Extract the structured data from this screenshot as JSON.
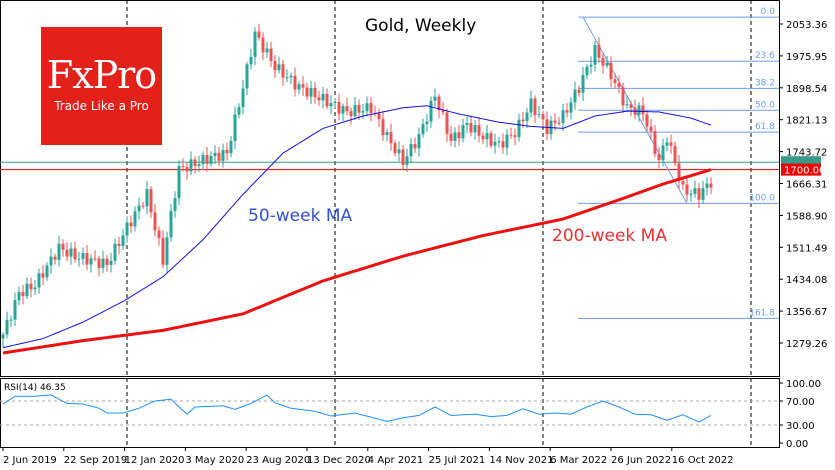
{
  "chart_data": {
    "type": "candlestick",
    "title": "Gold, Weekly",
    "logo": {
      "brand": "FxPro",
      "tagline": "Trade Like a Pro"
    },
    "y_ticks": [
      2053.36,
      1975.95,
      1898.54,
      1821.13,
      1743.72,
      1666.31,
      1588.9,
      1511.49,
      1434.08,
      1356.67,
      1279.26
    ],
    "ylim": [
      1250,
      2085
    ],
    "x_ticks": [
      "2 Jun 2019",
      "22 Sep 2019",
      "12 Jan 2020",
      "3 May 2020",
      "23 Aug 2020",
      "13 Dec 2020",
      "4 Apr 2021",
      "25 Jul 2021",
      "14 Nov 2021",
      "6 Mar 2022",
      "26 Jun 2022",
      "16 Oct 2022"
    ],
    "weeks": 178,
    "close_waypoints": [
      [
        0,
        1300
      ],
      [
        4,
        1400
      ],
      [
        8,
        1420
      ],
      [
        14,
        1510
      ],
      [
        18,
        1490
      ],
      [
        26,
        1470
      ],
      [
        31,
        1560
      ],
      [
        36,
        1640
      ],
      [
        40,
        1480
      ],
      [
        44,
        1700
      ],
      [
        52,
        1730
      ],
      [
        56,
        1740
      ],
      [
        60,
        1900
      ],
      [
        63,
        2030
      ],
      [
        68,
        1950
      ],
      [
        74,
        1900
      ],
      [
        80,
        1870
      ],
      [
        86,
        1840
      ],
      [
        92,
        1850
      ],
      [
        96,
        1780
      ],
      [
        100,
        1720
      ],
      [
        104,
        1780
      ],
      [
        108,
        1880
      ],
      [
        112,
        1770
      ],
      [
        116,
        1810
      ],
      [
        120,
        1780
      ],
      [
        124,
        1760
      ],
      [
        128,
        1790
      ],
      [
        132,
        1860
      ],
      [
        136,
        1800
      ],
      [
        140,
        1830
      ],
      [
        144,
        1900
      ],
      [
        148,
        1990
      ],
      [
        152,
        1930
      ],
      [
        156,
        1850
      ],
      [
        160,
        1840
      ],
      [
        164,
        1720
      ],
      [
        166,
        1780
      ],
      [
        170,
        1650
      ],
      [
        174,
        1640
      ],
      [
        177,
        1670
      ]
    ],
    "ma50": {
      "label": "50-week MA",
      "color": "#1010e0",
      "points": [
        [
          0,
          1268
        ],
        [
          10,
          1290
        ],
        [
          20,
          1330
        ],
        [
          30,
          1380
        ],
        [
          40,
          1440
        ],
        [
          50,
          1530
        ],
        [
          60,
          1640
        ],
        [
          70,
          1740
        ],
        [
          80,
          1800
        ],
        [
          90,
          1830
        ],
        [
          100,
          1850
        ],
        [
          106,
          1855
        ],
        [
          114,
          1835
        ],
        [
          124,
          1815
        ],
        [
          132,
          1805
        ],
        [
          140,
          1800
        ],
        [
          148,
          1830
        ],
        [
          156,
          1842
        ],
        [
          164,
          1840
        ],
        [
          172,
          1825
        ],
        [
          177,
          1808
        ]
      ]
    },
    "ma200": {
      "label": "200-week MA",
      "color": "#ee1010",
      "points": [
        [
          0,
          1255
        ],
        [
          20,
          1285
        ],
        [
          40,
          1310
        ],
        [
          60,
          1350
        ],
        [
          80,
          1430
        ],
        [
          100,
          1490
        ],
        [
          120,
          1540
        ],
        [
          140,
          1580
        ],
        [
          155,
          1630
        ],
        [
          165,
          1665
        ],
        [
          177,
          1700
        ]
      ]
    },
    "fib": {
      "levels": [
        "0.0",
        "23.6",
        "38.2",
        "50.0",
        "61.8",
        "100.0",
        "161.8"
      ],
      "prices": [
        2070,
        1963,
        1897,
        1844,
        1791,
        1618,
        1339
      ]
    },
    "fib_trend": {
      "from": [
        145,
        2070
      ],
      "to": [
        171,
        1618
      ]
    },
    "current_price_label": "1700.00",
    "h_lines": [
      1700,
      1718
    ],
    "rsi": {
      "label": "RSI(14) 46.35",
      "ticks": [
        "100.00",
        "70.00",
        "30.00",
        "0.00"
      ],
      "levels": [
        70,
        30
      ],
      "points": [
        [
          0,
          65
        ],
        [
          3,
          78
        ],
        [
          8,
          78
        ],
        [
          12,
          80
        ],
        [
          16,
          66
        ],
        [
          20,
          65
        ],
        [
          24,
          58
        ],
        [
          26,
          50
        ],
        [
          30,
          50
        ],
        [
          34,
          58
        ],
        [
          38,
          70
        ],
        [
          42,
          73
        ],
        [
          44,
          60
        ],
        [
          46,
          48
        ],
        [
          48,
          60
        ],
        [
          55,
          62
        ],
        [
          58,
          56
        ],
        [
          62,
          66
        ],
        [
          66,
          80
        ],
        [
          68,
          67
        ],
        [
          72,
          58
        ],
        [
          78,
          53
        ],
        [
          82,
          45
        ],
        [
          88,
          50
        ],
        [
          92,
          43
        ],
        [
          96,
          36
        ],
        [
          100,
          42
        ],
        [
          104,
          46
        ],
        [
          108,
          60
        ],
        [
          112,
          46
        ],
        [
          118,
          48
        ],
        [
          122,
          44
        ],
        [
          126,
          46
        ],
        [
          130,
          57
        ],
        [
          134,
          48
        ],
        [
          138,
          50
        ],
        [
          142,
          48
        ],
        [
          146,
          60
        ],
        [
          150,
          70
        ],
        [
          154,
          60
        ],
        [
          158,
          48
        ],
        [
          162,
          47
        ],
        [
          166,
          38
        ],
        [
          170,
          47
        ],
        [
          174,
          35
        ],
        [
          177,
          46
        ]
      ]
    }
  }
}
